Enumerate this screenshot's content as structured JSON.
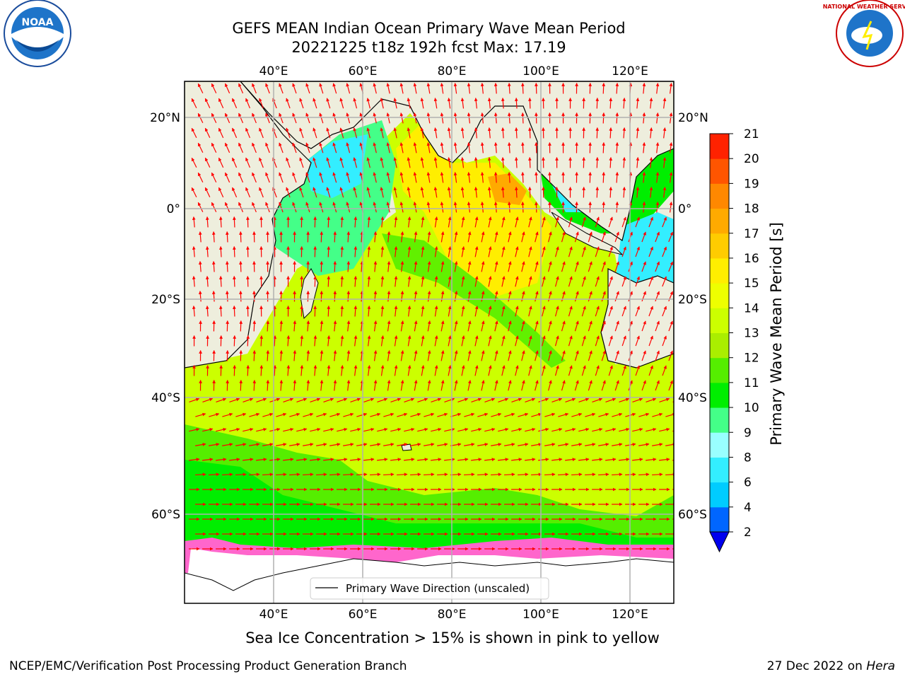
{
  "title": {
    "line1": "GEFS MEAN Indian Ocean Primary Wave Mean Period",
    "line2": "20221225 t18z 192h fcst   Max: 17.19"
  },
  "logos": {
    "left_text": "NOAA",
    "right_text": "NATIONAL WEATHER SERVICE"
  },
  "map": {
    "lon_labels": [
      "40°E",
      "60°E",
      "80°E",
      "100°E",
      "120°E"
    ],
    "lat_labels": [
      "20°N",
      "0°",
      "20°S",
      "40°S",
      "60°S"
    ],
    "legend_label": "Primary Wave Direction (unscaled)"
  },
  "colorbar": {
    "label": "Primary Wave Mean Period [s]",
    "ticks": [
      "2",
      "4",
      "6",
      "8",
      "9",
      "10",
      "11",
      "12",
      "13",
      "14",
      "15",
      "16",
      "17",
      "18",
      "19",
      "20",
      "21"
    ],
    "colors": [
      "#0066ff",
      "#00ccff",
      "#33eeff",
      "#99ffff",
      "#44ff88",
      "#00ee00",
      "#55ee00",
      "#aaee00",
      "#ccff00",
      "#eeff00",
      "#ffee00",
      "#ffcc00",
      "#ffaa00",
      "#ff8800",
      "#ff5500",
      "#ff2200"
    ],
    "extend_color": "#0000ee"
  },
  "caption": "Sea Ice Concentration > 15% is shown in pink to yellow",
  "footer": {
    "left": "NCEP/EMC/Verification Post Processing Product Generation Branch",
    "right_prefix": "27 Dec 2022 on ",
    "right_italic": "Hera"
  }
}
